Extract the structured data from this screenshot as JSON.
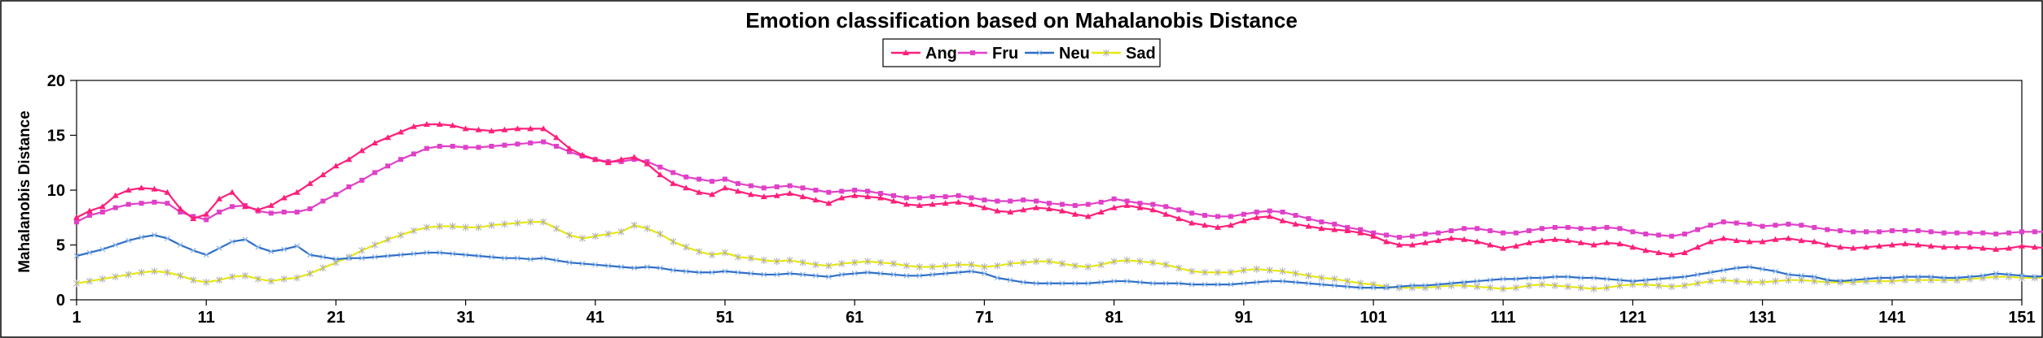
{
  "chart_data": {
    "type": "line",
    "title": "Emotion classification based on Mahalanobis Distance",
    "ylabel": "Mahalanobis  Distance",
    "xlabel": "",
    "ylim": [
      0,
      20
    ],
    "yticks": [
      0,
      5,
      10,
      15,
      20
    ],
    "xlim": [
      1,
      151
    ],
    "xticks": [
      1,
      11,
      21,
      31,
      41,
      51,
      61,
      71,
      81,
      91,
      101,
      111,
      121,
      131,
      141,
      151
    ],
    "grid": false,
    "legend_position": "top-center",
    "x_start": 1,
    "series": [
      {
        "name": "Ang",
        "color": "#ff1f7a",
        "marker": "triangle",
        "values": [
          7.5,
          8.1,
          8.5,
          9.5,
          10.0,
          10.2,
          10.1,
          9.8,
          8.3,
          7.4,
          7.8,
          9.2,
          9.8,
          8.5,
          8.2,
          8.6,
          9.3,
          9.8,
          10.6,
          11.4,
          12.2,
          12.8,
          13.6,
          14.3,
          14.8,
          15.3,
          15.8,
          16.0,
          16.0,
          15.9,
          15.6,
          15.5,
          15.4,
          15.5,
          15.6,
          15.6,
          15.6,
          14.8,
          13.8,
          13.2,
          12.8,
          12.5,
          12.8,
          13.0,
          12.4,
          11.4,
          10.6,
          10.2,
          9.8,
          9.6,
          10.2,
          9.9,
          9.6,
          9.4,
          9.5,
          9.7,
          9.4,
          9.1,
          8.8,
          9.3,
          9.5,
          9.4,
          9.3,
          9.0,
          8.7,
          8.6,
          8.7,
          8.8,
          8.9,
          8.7,
          8.4,
          8.1,
          8.0,
          8.2,
          8.4,
          8.3,
          8.1,
          7.8,
          7.6,
          8.0,
          8.4,
          8.6,
          8.4,
          8.2,
          7.8,
          7.4,
          7.0,
          6.8,
          6.6,
          6.8,
          7.2,
          7.5,
          7.6,
          7.2,
          6.9,
          6.7,
          6.5,
          6.4,
          6.3,
          6.1,
          5.8,
          5.3,
          5.0,
          5.0,
          5.2,
          5.4,
          5.6,
          5.5,
          5.3,
          5.0,
          4.7,
          4.9,
          5.2,
          5.4,
          5.5,
          5.4,
          5.2,
          5.0,
          5.2,
          5.1,
          4.8,
          4.5,
          4.3,
          4.1,
          4.3,
          4.8,
          5.3,
          5.6,
          5.4,
          5.3,
          5.3,
          5.5,
          5.6,
          5.4,
          5.3,
          5.0,
          4.8,
          4.7,
          4.8,
          4.9,
          5.0,
          5.1,
          5.0,
          4.9,
          4.8,
          4.8,
          4.8,
          4.7,
          4.6,
          4.7,
          4.9,
          4.8,
          4.7
        ]
      },
      {
        "name": "Fru",
        "color": "#e040c8",
        "marker": "square",
        "values": [
          7.1,
          7.7,
          8.0,
          8.4,
          8.7,
          8.8,
          8.9,
          8.8,
          8.0,
          7.6,
          7.3,
          8.0,
          8.5,
          8.6,
          8.1,
          7.9,
          8.0,
          8.0,
          8.3,
          9.0,
          9.6,
          10.3,
          10.9,
          11.6,
          12.2,
          12.8,
          13.3,
          13.8,
          14.0,
          14.0,
          13.9,
          13.9,
          14.0,
          14.1,
          14.2,
          14.3,
          14.4,
          14.0,
          13.5,
          13.1,
          12.8,
          12.6,
          12.6,
          12.8,
          12.6,
          12.1,
          11.6,
          11.2,
          11.0,
          10.8,
          11.0,
          10.6,
          10.4,
          10.2,
          10.3,
          10.4,
          10.2,
          10.0,
          9.8,
          9.9,
          10.0,
          9.9,
          9.7,
          9.5,
          9.3,
          9.3,
          9.4,
          9.4,
          9.5,
          9.3,
          9.1,
          9.0,
          9.0,
          9.1,
          9.0,
          8.8,
          8.7,
          8.6,
          8.7,
          8.9,
          9.2,
          9.0,
          8.8,
          8.7,
          8.5,
          8.2,
          7.9,
          7.7,
          7.6,
          7.6,
          7.8,
          8.0,
          8.1,
          8.0,
          7.7,
          7.4,
          7.1,
          6.9,
          6.6,
          6.4,
          6.1,
          5.9,
          5.7,
          5.8,
          6.0,
          6.1,
          6.3,
          6.5,
          6.5,
          6.3,
          6.1,
          6.1,
          6.3,
          6.5,
          6.6,
          6.6,
          6.5,
          6.5,
          6.6,
          6.5,
          6.2,
          6.0,
          5.9,
          5.8,
          6.0,
          6.4,
          6.8,
          7.1,
          7.0,
          6.9,
          6.7,
          6.8,
          6.9,
          6.8,
          6.6,
          6.4,
          6.3,
          6.2,
          6.2,
          6.2,
          6.3,
          6.3,
          6.3,
          6.2,
          6.1,
          6.1,
          6.1,
          6.1,
          6.0,
          6.1,
          6.2,
          6.2,
          6.2
        ]
      },
      {
        "name": "Neu",
        "color": "#2e6ec8",
        "marker": "cross",
        "values": [
          4.0,
          4.3,
          4.6,
          5.0,
          5.4,
          5.7,
          5.9,
          5.6,
          5.0,
          4.5,
          4.1,
          4.7,
          5.3,
          5.5,
          4.8,
          4.4,
          4.6,
          4.9,
          4.1,
          3.9,
          3.7,
          3.8,
          3.8,
          3.9,
          4.0,
          4.1,
          4.2,
          4.3,
          4.3,
          4.2,
          4.1,
          4.0,
          3.9,
          3.8,
          3.8,
          3.7,
          3.8,
          3.6,
          3.4,
          3.3,
          3.2,
          3.1,
          3.0,
          2.9,
          3.0,
          2.9,
          2.7,
          2.6,
          2.5,
          2.5,
          2.6,
          2.5,
          2.4,
          2.3,
          2.3,
          2.4,
          2.3,
          2.2,
          2.1,
          2.3,
          2.4,
          2.5,
          2.4,
          2.3,
          2.2,
          2.2,
          2.3,
          2.4,
          2.5,
          2.6,
          2.4,
          2.0,
          1.8,
          1.6,
          1.5,
          1.5,
          1.5,
          1.5,
          1.5,
          1.6,
          1.7,
          1.7,
          1.6,
          1.5,
          1.5,
          1.5,
          1.4,
          1.4,
          1.4,
          1.4,
          1.5,
          1.6,
          1.7,
          1.7,
          1.6,
          1.5,
          1.4,
          1.3,
          1.2,
          1.1,
          1.1,
          1.1,
          1.2,
          1.3,
          1.3,
          1.4,
          1.5,
          1.6,
          1.7,
          1.8,
          1.9,
          1.9,
          2.0,
          2.0,
          2.1,
          2.1,
          2.0,
          2.0,
          1.9,
          1.8,
          1.7,
          1.8,
          1.9,
          2.0,
          2.1,
          2.3,
          2.5,
          2.7,
          2.9,
          3.0,
          2.8,
          2.6,
          2.3,
          2.2,
          2.1,
          1.8,
          1.7,
          1.8,
          1.9,
          2.0,
          2.0,
          2.1,
          2.1,
          2.1,
          2.0,
          2.0,
          2.1,
          2.2,
          2.4,
          2.3,
          2.2,
          2.1,
          2.2,
          2.3,
          2.3
        ]
      },
      {
        "name": "Sad",
        "color": "#e6e617",
        "marker": "star",
        "values": [
          1.5,
          1.7,
          1.9,
          2.1,
          2.3,
          2.5,
          2.6,
          2.5,
          2.2,
          1.8,
          1.6,
          1.8,
          2.1,
          2.2,
          1.9,
          1.7,
          1.9,
          2.0,
          2.4,
          2.9,
          3.4,
          3.9,
          4.5,
          5.0,
          5.5,
          5.9,
          6.3,
          6.6,
          6.7,
          6.7,
          6.6,
          6.6,
          6.8,
          6.9,
          7.0,
          7.1,
          7.1,
          6.5,
          5.9,
          5.6,
          5.8,
          6.0,
          6.2,
          6.8,
          6.5,
          6.0,
          5.3,
          4.8,
          4.4,
          4.1,
          4.3,
          3.9,
          3.8,
          3.6,
          3.5,
          3.6,
          3.4,
          3.2,
          3.1,
          3.3,
          3.4,
          3.5,
          3.4,
          3.3,
          3.1,
          3.0,
          3.0,
          3.1,
          3.2,
          3.2,
          3.0,
          3.1,
          3.3,
          3.4,
          3.5,
          3.5,
          3.3,
          3.1,
          3.0,
          3.2,
          3.5,
          3.6,
          3.5,
          3.4,
          3.2,
          2.9,
          2.6,
          2.5,
          2.5,
          2.5,
          2.7,
          2.8,
          2.7,
          2.6,
          2.4,
          2.2,
          2.0,
          1.9,
          1.7,
          1.5,
          1.4,
          1.2,
          1.1,
          1.1,
          1.1,
          1.2,
          1.3,
          1.3,
          1.2,
          1.1,
          1.0,
          1.1,
          1.3,
          1.4,
          1.3,
          1.2,
          1.1,
          1.0,
          1.1,
          1.3,
          1.4,
          1.4,
          1.3,
          1.2,
          1.3,
          1.5,
          1.7,
          1.8,
          1.7,
          1.6,
          1.6,
          1.7,
          1.8,
          1.8,
          1.7,
          1.6,
          1.6,
          1.6,
          1.7,
          1.7,
          1.7,
          1.8,
          1.8,
          1.8,
          1.8,
          1.8,
          1.9,
          2.0,
          2.1,
          2.1,
          2.0,
          2.0,
          2.0,
          2.0,
          2.0
        ]
      }
    ]
  }
}
